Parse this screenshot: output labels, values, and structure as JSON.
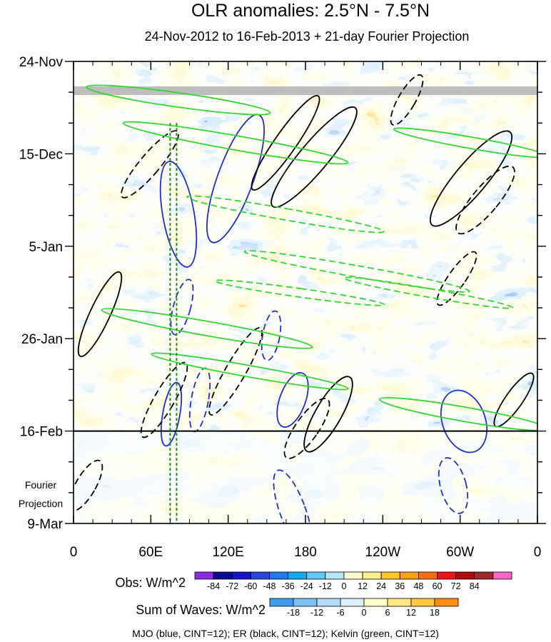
{
  "chart_data": {
    "type": "heatmap",
    "title": "OLR anomalies: 2.5°N - 7.5°N",
    "subtitle": "24-Nov-2012 to 16-Feb-2013 + 21-day Fourier Projection",
    "x_tick_labels": [
      "0",
      "60E",
      "120E",
      "180",
      "120W",
      "60W",
      "0"
    ],
    "x_range_deg": [
      0,
      360
    ],
    "x_tick_values_deg": [
      0,
      60,
      120,
      180,
      240,
      300,
      360
    ],
    "y_tick_labels": [
      "24-Nov",
      "15-Dec",
      "5-Jan",
      "26-Jan",
      "16-Feb",
      "9-Mar"
    ],
    "y_tick_values_day": [
      0,
      21,
      42,
      63,
      84,
      105
    ],
    "y_range_day": [
      0,
      105
    ],
    "observed_end_day": 84,
    "projection_label": "Fourier\nProjection",
    "vertical_markers_deg": [
      75,
      80
    ],
    "obs_colorbar": {
      "label": "Obs: W/m^2",
      "levels": [
        "-84",
        "-72",
        "-60",
        "-48",
        "-36",
        "-24",
        "-12",
        "0",
        "12",
        "24",
        "36",
        "48",
        "60",
        "72",
        "84"
      ],
      "colors": [
        "#8a2be2",
        "#0a0a8c",
        "#1414c8",
        "#2a46dc",
        "#1e78f0",
        "#14a8f0",
        "#64c8f5",
        "#b4e6fa",
        "#ffffd2",
        "#fff08c",
        "#ffc828",
        "#ffa014",
        "#ff6e0a",
        "#f01414",
        "#b40a0a",
        "#a02828",
        "#ff64c8"
      ]
    },
    "waves_colorbar": {
      "label": "Sum of Waves: W/m^2",
      "levels": [
        "-18",
        "-12",
        "-6",
        "0",
        "6",
        "12",
        "18"
      ],
      "colors": [
        "#3c9cf0",
        "#78c0f5",
        "#b4dcfa",
        "#dcf0fc",
        "#ffffc8",
        "#ffe682",
        "#ffc83c",
        "#ff8c14"
      ]
    },
    "footer": "MJO (blue, CINT=12); ER (black, CINT=12); Kelvin (green, CINT=12)"
  }
}
